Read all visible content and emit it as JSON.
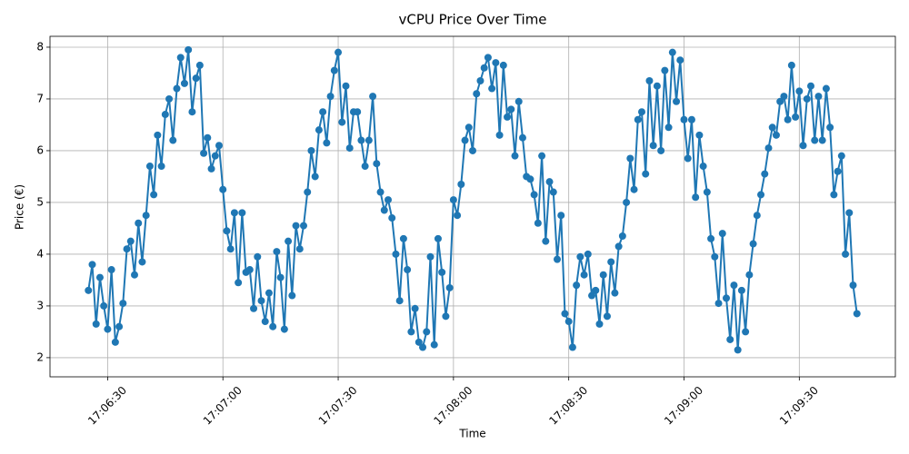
{
  "chart_data": {
    "type": "line",
    "title": "vCPU Price Over Time",
    "x_label": "Time",
    "y_label": "Price (€)",
    "color": "#1f77b4",
    "grid": true,
    "markers": true,
    "xlim": [
      "17:06:15",
      "17:09:55"
    ],
    "xticks": [
      "17:06:30",
      "17:07:00",
      "17:07:30",
      "17:08:00",
      "17:08:30",
      "17:09:00",
      "17:09:30"
    ],
    "ylim": [
      1.63,
      8.21
    ],
    "yticks": [
      2,
      3,
      4,
      5,
      6,
      7,
      8
    ],
    "x": [
      "17:06:25",
      "17:06:26",
      "17:06:27",
      "17:06:28",
      "17:06:29",
      "17:06:30",
      "17:06:31",
      "17:06:32",
      "17:06:33",
      "17:06:34",
      "17:06:35",
      "17:06:36",
      "17:06:37",
      "17:06:38",
      "17:06:39",
      "17:06:40",
      "17:06:41",
      "17:06:42",
      "17:06:43",
      "17:06:44",
      "17:06:45",
      "17:06:46",
      "17:06:47",
      "17:06:48",
      "17:06:49",
      "17:06:50",
      "17:06:51",
      "17:06:52",
      "17:06:53",
      "17:06:54",
      "17:06:55",
      "17:06:56",
      "17:06:57",
      "17:06:58",
      "17:06:59",
      "17:07:00",
      "17:07:01",
      "17:07:02",
      "17:07:03",
      "17:07:04",
      "17:07:05",
      "17:07:06",
      "17:07:07",
      "17:07:08",
      "17:07:09",
      "17:07:10",
      "17:07:11",
      "17:07:12",
      "17:07:13",
      "17:07:14",
      "17:07:15",
      "17:07:16",
      "17:07:17",
      "17:07:18",
      "17:07:19",
      "17:07:20",
      "17:07:21",
      "17:07:22",
      "17:07:23",
      "17:07:24",
      "17:07:25",
      "17:07:26",
      "17:07:27",
      "17:07:28",
      "17:07:29",
      "17:07:30",
      "17:07:31",
      "17:07:32",
      "17:07:33",
      "17:07:34",
      "17:07:35",
      "17:07:36",
      "17:07:37",
      "17:07:38",
      "17:07:39",
      "17:07:40",
      "17:07:41",
      "17:07:42",
      "17:07:43",
      "17:07:44",
      "17:07:45",
      "17:07:46",
      "17:07:47",
      "17:07:48",
      "17:07:49",
      "17:07:50",
      "17:07:51",
      "17:07:52",
      "17:07:53",
      "17:07:54",
      "17:07:55",
      "17:07:56",
      "17:07:57",
      "17:07:58",
      "17:07:59",
      "17:08:00",
      "17:08:01",
      "17:08:02",
      "17:08:03",
      "17:08:04",
      "17:08:05",
      "17:08:06",
      "17:08:07",
      "17:08:08",
      "17:08:09",
      "17:08:10",
      "17:08:11",
      "17:08:12",
      "17:08:13",
      "17:08:14",
      "17:08:15",
      "17:08:16",
      "17:08:17",
      "17:08:18",
      "17:08:19",
      "17:08:20",
      "17:08:21",
      "17:08:22",
      "17:08:23",
      "17:08:24",
      "17:08:25",
      "17:08:26",
      "17:08:27",
      "17:08:28",
      "17:08:29",
      "17:08:30",
      "17:08:31",
      "17:08:32",
      "17:08:33",
      "17:08:34",
      "17:08:35",
      "17:08:36",
      "17:08:37",
      "17:08:38",
      "17:08:39",
      "17:08:40",
      "17:08:41",
      "17:08:42",
      "17:08:43",
      "17:08:44",
      "17:08:45",
      "17:08:46",
      "17:08:47",
      "17:08:48",
      "17:08:49",
      "17:08:50",
      "17:08:51",
      "17:08:52",
      "17:08:53",
      "17:08:54",
      "17:08:55",
      "17:08:56",
      "17:08:57",
      "17:08:58",
      "17:08:59",
      "17:09:00",
      "17:09:01",
      "17:09:02",
      "17:09:03",
      "17:09:04",
      "17:09:05",
      "17:09:06",
      "17:09:07",
      "17:09:08",
      "17:09:09",
      "17:09:10",
      "17:09:11",
      "17:09:12",
      "17:09:13",
      "17:09:14",
      "17:09:15",
      "17:09:16",
      "17:09:17",
      "17:09:18",
      "17:09:19",
      "17:09:20",
      "17:09:21",
      "17:09:22",
      "17:09:23",
      "17:09:24",
      "17:09:25",
      "17:09:26",
      "17:09:27",
      "17:09:28",
      "17:09:29",
      "17:09:30",
      "17:09:31",
      "17:09:32",
      "17:09:33",
      "17:09:34",
      "17:09:35",
      "17:09:36",
      "17:09:37",
      "17:09:38",
      "17:09:39",
      "17:09:40",
      "17:09:41",
      "17:09:42",
      "17:09:43",
      "17:09:44",
      "17:09:45"
    ],
    "values": [
      3.3,
      3.8,
      2.65,
      3.55,
      3.0,
      2.55,
      3.7,
      2.3,
      2.6,
      3.05,
      4.1,
      4.25,
      3.6,
      4.6,
      3.85,
      4.75,
      5.7,
      5.15,
      6.3,
      5.7,
      6.7,
      7.0,
      6.2,
      7.2,
      7.8,
      7.3,
      7.95,
      6.75,
      7.4,
      7.65,
      5.95,
      6.25,
      5.65,
      5.9,
      6.1,
      5.25,
      4.45,
      4.1,
      4.8,
      3.45,
      4.8,
      3.65,
      3.7,
      2.95,
      3.95,
      3.1,
      2.7,
      3.25,
      2.6,
      4.05,
      3.55,
      2.55,
      4.25,
      3.2,
      4.55,
      4.1,
      4.55,
      5.2,
      6.0,
      5.5,
      6.4,
      6.75,
      6.15,
      7.05,
      7.55,
      7.9,
      6.55,
      7.25,
      6.05,
      6.75,
      6.75,
      6.2,
      5.7,
      6.2,
      7.05,
      5.75,
      5.2,
      4.85,
      5.05,
      4.7,
      4.0,
      3.1,
      4.3,
      3.7,
      2.5,
      2.95,
      2.3,
      2.2,
      2.5,
      3.95,
      2.25,
      4.3,
      3.65,
      2.8,
      3.35,
      5.05,
      4.75,
      5.35,
      6.2,
      6.45,
      6.0,
      7.1,
      7.35,
      7.6,
      7.8,
      7.2,
      7.7,
      6.3,
      7.65,
      6.65,
      6.8,
      5.9,
      6.95,
      6.25,
      5.5,
      5.45,
      5.15,
      4.6,
      5.9,
      4.25,
      5.4,
      5.2,
      3.9,
      4.75,
      2.85,
      2.7,
      2.2,
      3.4,
      3.95,
      3.6,
      4.0,
      3.2,
      3.3,
      2.65,
      3.6,
      2.8,
      3.85,
      3.25,
      4.15,
      4.35,
      5.0,
      5.85,
      5.25,
      6.6,
      6.75,
      5.55,
      7.35,
      6.1,
      7.25,
      6.0,
      7.55,
      6.45,
      7.9,
      6.95,
      7.75,
      6.6,
      5.85,
      6.6,
      5.1,
      6.3,
      5.7,
      5.2,
      4.3,
      3.95,
      3.05,
      4.4,
      3.15,
      2.35,
      3.4,
      2.15,
      3.3,
      2.5,
      3.6,
      4.2,
      4.75,
      5.15,
      5.55,
      6.05,
      6.45,
      6.3,
      6.95,
      7.05,
      6.6,
      7.65,
      6.65,
      7.15,
      6.1,
      7.0,
      7.25,
      6.2,
      7.05,
      6.2,
      7.2,
      6.45,
      5.15,
      5.6,
      5.9,
      4.0,
      4.8,
      3.4,
      2.85
    ]
  }
}
